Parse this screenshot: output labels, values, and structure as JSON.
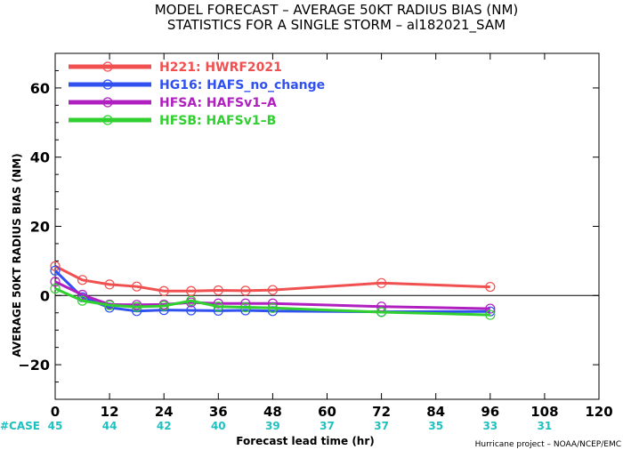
{
  "chart_data": {
    "type": "line",
    "title_line1": "MODEL FORECAST – AVERAGE 50KT RADIUS BIAS (NM)",
    "title_line2": "STATISTICS FOR A SINGLE STORM – al182021_SAM",
    "ylabel": "AVERAGE 50KT RADIUS BIAS (NM)",
    "xlabel": "Forecast lead time (hr)",
    "credit": "Hurricane project – NOAA/NCEP/EMC",
    "xlim": [
      0,
      120
    ],
    "ylim": [
      -30,
      70
    ],
    "x_ticks": [
      0,
      12,
      24,
      36,
      48,
      60,
      72,
      84,
      96,
      108,
      120
    ],
    "x_tick_labels": [
      "0",
      "12",
      "24",
      "36",
      "48",
      "60",
      "72",
      "84",
      "96",
      "108",
      "120"
    ],
    "y_ticks": [
      -20,
      0,
      20,
      40,
      60
    ],
    "y_tick_labels": [
      "−20",
      "0",
      "20",
      "40",
      "60"
    ],
    "zero_line": true,
    "case_label": "#CASE",
    "case_x": [
      0,
      12,
      24,
      36,
      48,
      60,
      72,
      84,
      96,
      108
    ],
    "case_counts": [
      "45",
      "44",
      "42",
      "40",
      "39",
      "37",
      "37",
      "35",
      "33",
      "31"
    ],
    "legend_position": "top-left",
    "series": [
      {
        "name": "H221: HWRF2021",
        "color": "#f05050",
        "x": [
          0,
          6,
          12,
          18,
          24,
          30,
          36,
          42,
          48,
          72,
          96
        ],
        "y": [
          8.5,
          4.5,
          3.2,
          2.6,
          1.3,
          1.3,
          1.5,
          1.4,
          1.6,
          3.6,
          2.5
        ]
      },
      {
        "name": "HG16: HAFS_no_change",
        "color": "#3050f0",
        "x": [
          0,
          6,
          12,
          18,
          24,
          30,
          36,
          42,
          48,
          72,
          96
        ],
        "y": [
          7.2,
          -0.5,
          -3.5,
          -4.5,
          -4.2,
          -4.3,
          -4.4,
          -4.3,
          -4.5,
          -4.7,
          -4.6
        ]
      },
      {
        "name": "HFSA: HAFSv1–A",
        "color": "#b020c0",
        "x": [
          0,
          6,
          12,
          18,
          24,
          30,
          36,
          42,
          48,
          72,
          96
        ],
        "y": [
          4.0,
          0.2,
          -2.6,
          -2.7,
          -2.6,
          -2.0,
          -2.3,
          -2.3,
          -2.3,
          -3.2,
          -3.8
        ]
      },
      {
        "name": "HFSB: HAFSv1–B",
        "color": "#30d030",
        "x": [
          0,
          6,
          12,
          18,
          24,
          30,
          36,
          42,
          48,
          72,
          96
        ],
        "y": [
          2.0,
          -1.5,
          -2.8,
          -3.3,
          -3.0,
          -1.5,
          -3.2,
          -3.4,
          -3.6,
          -4.8,
          -5.6
        ]
      }
    ]
  }
}
